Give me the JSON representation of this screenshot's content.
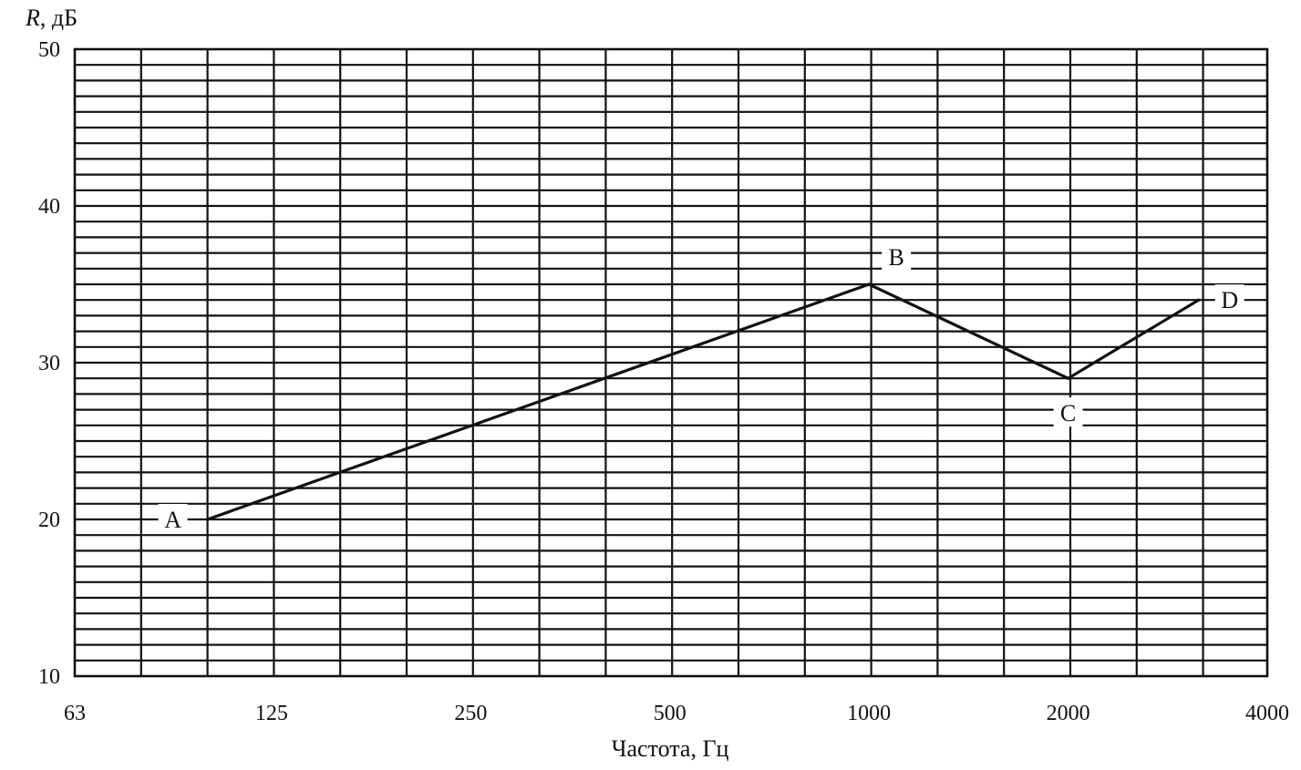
{
  "chart_data": {
    "type": "line",
    "ylabel_symbol": "R",
    "ylabel_unit": ", дБ",
    "xlabel": "Частота, Гц",
    "x_scale": "log2",
    "xlim": [
      63,
      4000
    ],
    "ylim": [
      10,
      50
    ],
    "x_ticks": [
      "63",
      "125",
      "250",
      "500",
      "1000",
      "2000",
      "4000"
    ],
    "x_tick_values": [
      63,
      125,
      250,
      500,
      1000,
      2000,
      4000
    ],
    "y_ticks": [
      "10",
      "20",
      "30",
      "40",
      "50"
    ],
    "y_tick_values": [
      10,
      20,
      30,
      40,
      50
    ],
    "grid": true,
    "grid_y_step": 1,
    "grid_x_step_octave": 0.3333,
    "series": [
      {
        "points": [
          {
            "label": "A",
            "x": 100,
            "y": 20
          },
          {
            "label": "B",
            "x": 1000,
            "y": 35
          },
          {
            "label": "C",
            "x": 2000,
            "y": 29
          },
          {
            "label": "D",
            "x": 3150,
            "y": 34
          }
        ]
      }
    ]
  }
}
